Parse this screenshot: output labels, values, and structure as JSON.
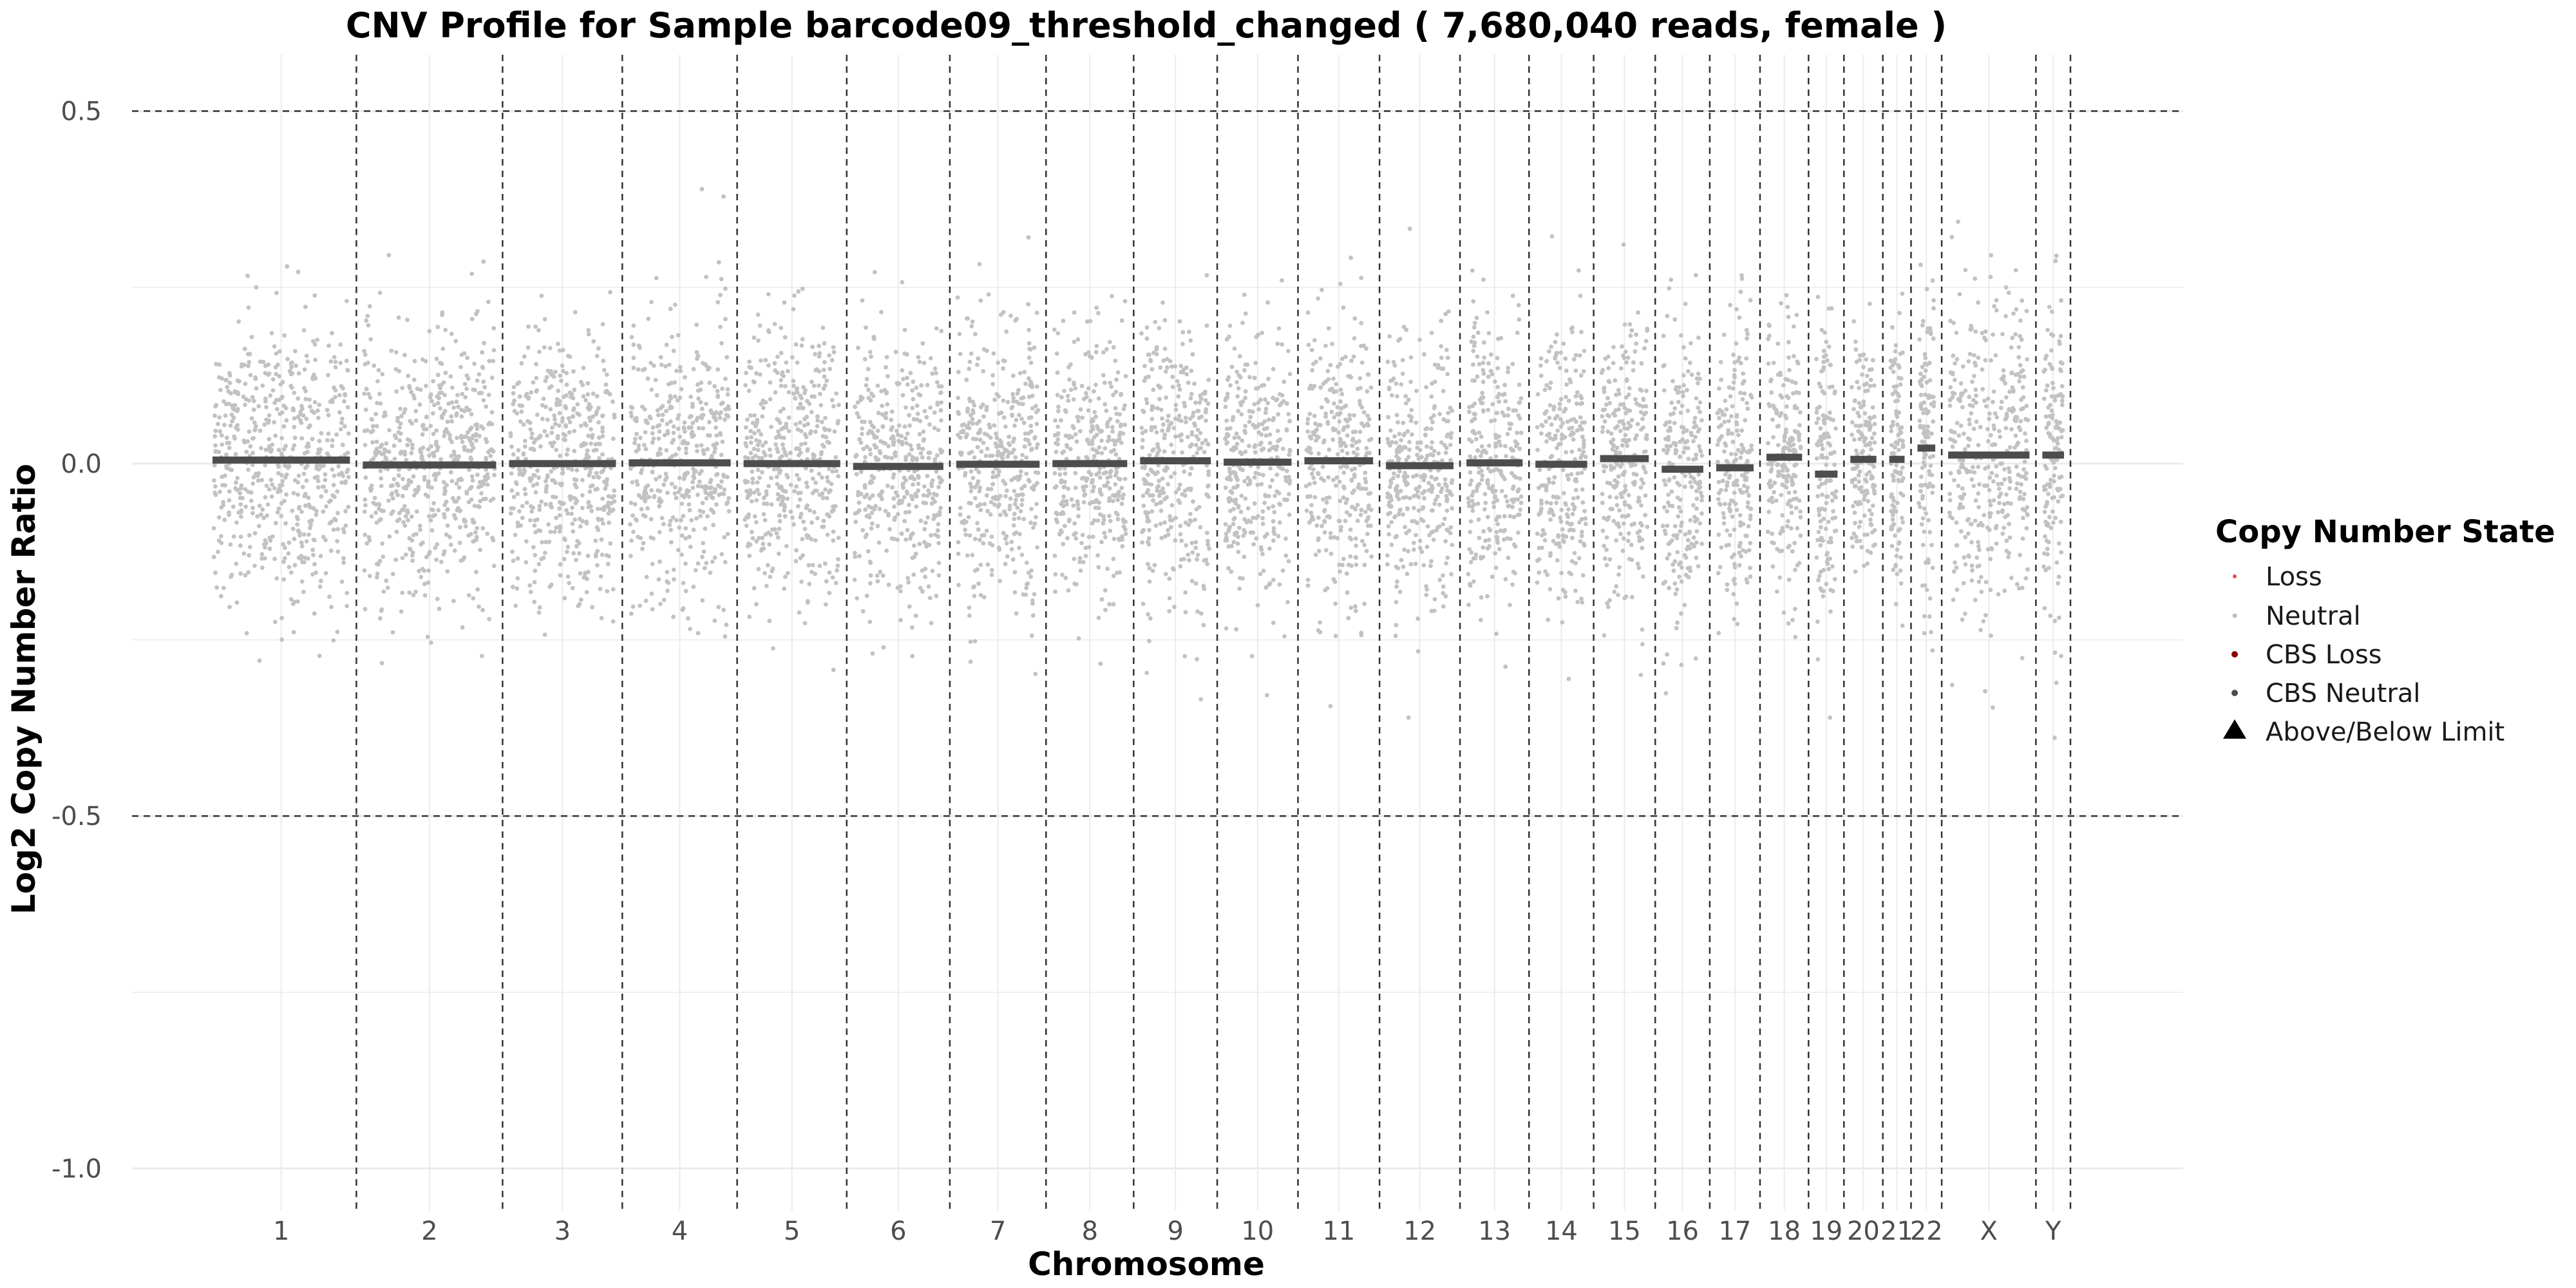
{
  "chart_data": {
    "type": "scatter",
    "title": "CNV Profile for Sample barcode09_threshold_changed ( 7,680,040 reads, female )",
    "xlabel": "Chromosome",
    "ylabel": "Log2 Copy Number Ratio",
    "ylim": [
      -1.06,
      0.58
    ],
    "yticks": [
      0.5,
      0.0,
      -0.5,
      -1.0
    ],
    "ytick_labels": [
      "0.5",
      "0.0",
      "-0.5",
      "-1.0"
    ],
    "threshold_lines": [
      0.5,
      -0.5
    ],
    "grid": true,
    "legend": {
      "title": "Copy Number State",
      "placement": "right",
      "entries": [
        {
          "label": "Loss",
          "color": "#e8474b",
          "shape": "dot"
        },
        {
          "label": "Neutral",
          "color": "#bdbdbd",
          "shape": "dot"
        },
        {
          "label": "CBS Loss",
          "color": "#8b0000",
          "shape": "dot"
        },
        {
          "label": "CBS Neutral",
          "color": "#4d4d4d",
          "shape": "dot"
        },
        {
          "label": "Above/Below Limit",
          "color": "#000000",
          "shape": "triangle"
        }
      ]
    },
    "chromosomes": [
      {
        "name": "1",
        "length": 248.96,
        "segment": 0.005,
        "spread": 0.11
      },
      {
        "name": "2",
        "length": 242.19,
        "segment": -0.002,
        "spread": 0.11
      },
      {
        "name": "3",
        "length": 198.3,
        "segment": 0.0,
        "spread": 0.11
      },
      {
        "name": "4",
        "length": 190.21,
        "segment": 0.001,
        "spread": 0.11
      },
      {
        "name": "5",
        "length": 181.54,
        "segment": 0.0,
        "spread": 0.11
      },
      {
        "name": "6",
        "length": 170.81,
        "segment": -0.004,
        "spread": 0.11
      },
      {
        "name": "7",
        "length": 159.35,
        "segment": -0.001,
        "spread": 0.11
      },
      {
        "name": "8",
        "length": 145.14,
        "segment": 0.0,
        "spread": 0.11
      },
      {
        "name": "9",
        "length": 138.39,
        "segment": 0.004,
        "spread": 0.11
      },
      {
        "name": "10",
        "length": 133.8,
        "segment": 0.002,
        "spread": 0.11
      },
      {
        "name": "11",
        "length": 135.09,
        "segment": 0.004,
        "spread": 0.11
      },
      {
        "name": "12",
        "length": 133.28,
        "segment": -0.003,
        "spread": 0.11
      },
      {
        "name": "13",
        "length": 114.36,
        "segment": 0.001,
        "spread": 0.11
      },
      {
        "name": "14",
        "length": 107.04,
        "segment": -0.001,
        "spread": 0.11
      },
      {
        "name": "15",
        "length": 101.99,
        "segment": 0.007,
        "spread": 0.11
      },
      {
        "name": "16",
        "length": 90.34,
        "segment": -0.008,
        "spread": 0.11
      },
      {
        "name": "17",
        "length": 83.26,
        "segment": -0.006,
        "spread": 0.12
      },
      {
        "name": "18",
        "length": 80.37,
        "segment": 0.009,
        "spread": 0.11
      },
      {
        "name": "19",
        "length": 58.62,
        "segment": -0.015,
        "spread": 0.12
      },
      {
        "name": "20",
        "length": 64.44,
        "segment": 0.006,
        "spread": 0.11
      },
      {
        "name": "21",
        "length": 46.71,
        "segment": 0.006,
        "spread": 0.12
      },
      {
        "name": "22",
        "length": 50.82,
        "segment": 0.022,
        "spread": 0.12
      },
      {
        "name": "X",
        "length": 156.04,
        "segment": 0.012,
        "spread": 0.13
      },
      {
        "name": "Y",
        "length": 57.23,
        "segment": 0.012,
        "spread": 0.13
      }
    ]
  }
}
